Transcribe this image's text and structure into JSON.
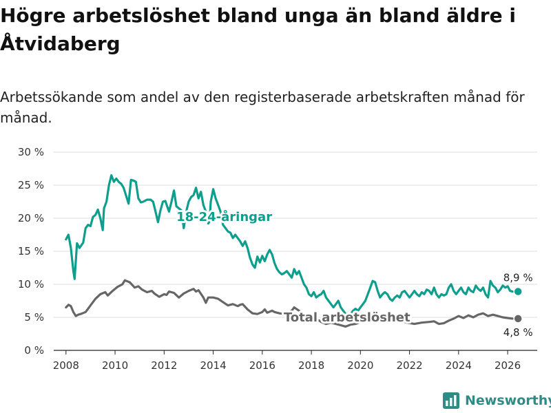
{
  "title": "Högre arbetslöshet bland unga än bland äldre i Åtvidaberg",
  "subtitle": "Arbetssökande som andel av den registerbaserade arbetskraften månad för månad.",
  "brand": {
    "name": "Newsworthy",
    "color": "#2e8b86"
  },
  "chart_data": {
    "type": "line",
    "title": "Högre arbetslöshet bland unga än bland äldre i Åtvidaberg",
    "xlabel": "",
    "ylabel": "",
    "xlim": [
      2007.5,
      2026.7
    ],
    "ylim": [
      0,
      30
    ],
    "x_ticks": [
      2008,
      2010,
      2012,
      2014,
      2016,
      2018,
      2020,
      2022,
      2024,
      2026
    ],
    "y_ticks": [
      0,
      5,
      10,
      15,
      20,
      25,
      30
    ],
    "y_tick_labels": [
      "0 %",
      "5 %",
      "10 %",
      "15 %",
      "20 %",
      "25 %",
      "30 %"
    ],
    "grid": "horizontal",
    "series": [
      {
        "name": "18-24-åringar",
        "color": "#0d9e8e",
        "label": "18-24-åringar",
        "end_label": "8,9 %",
        "end_value": 8.9,
        "points": [
          [
            2008.0,
            16.8
          ],
          [
            2008.1,
            17.5
          ],
          [
            2008.2,
            15.5
          ],
          [
            2008.3,
            12.0
          ],
          [
            2008.35,
            10.8
          ],
          [
            2008.45,
            16.2
          ],
          [
            2008.55,
            15.5
          ],
          [
            2008.7,
            16.3
          ],
          [
            2008.8,
            18.5
          ],
          [
            2008.9,
            19.0
          ],
          [
            2009.0,
            18.8
          ],
          [
            2009.1,
            20.2
          ],
          [
            2009.2,
            20.5
          ],
          [
            2009.3,
            21.3
          ],
          [
            2009.4,
            20.0
          ],
          [
            2009.5,
            18.2
          ],
          [
            2009.55,
            21.5
          ],
          [
            2009.65,
            22.5
          ],
          [
            2009.75,
            25.0
          ],
          [
            2009.85,
            26.5
          ],
          [
            2009.95,
            25.5
          ],
          [
            2010.05,
            26.0
          ],
          [
            2010.15,
            25.5
          ],
          [
            2010.25,
            25.2
          ],
          [
            2010.35,
            24.6
          ],
          [
            2010.45,
            23.4
          ],
          [
            2010.55,
            22.2
          ],
          [
            2010.65,
            25.8
          ],
          [
            2010.75,
            25.7
          ],
          [
            2010.85,
            25.5
          ],
          [
            2010.95,
            23.0
          ],
          [
            2011.05,
            22.4
          ],
          [
            2011.15,
            22.5
          ],
          [
            2011.3,
            22.8
          ],
          [
            2011.45,
            22.8
          ],
          [
            2011.55,
            22.5
          ],
          [
            2011.65,
            21.0
          ],
          [
            2011.75,
            19.4
          ],
          [
            2011.85,
            21.2
          ],
          [
            2011.95,
            22.5
          ],
          [
            2012.05,
            22.6
          ],
          [
            2012.15,
            21.5
          ],
          [
            2012.2,
            21.0
          ],
          [
            2012.3,
            22.5
          ],
          [
            2012.4,
            24.2
          ],
          [
            2012.5,
            21.8
          ],
          [
            2012.6,
            21.5
          ],
          [
            2012.7,
            21.2
          ],
          [
            2012.8,
            18.5
          ],
          [
            2012.9,
            21.0
          ],
          [
            2013.0,
            22.5
          ],
          [
            2013.1,
            23.2
          ],
          [
            2013.2,
            23.5
          ],
          [
            2013.3,
            24.6
          ],
          [
            2013.4,
            23.0
          ],
          [
            2013.5,
            24.0
          ],
          [
            2013.6,
            22.0
          ],
          [
            2013.7,
            21.0
          ],
          [
            2013.75,
            20.5
          ],
          [
            2013.8,
            19.2
          ],
          [
            2013.85,
            19.5
          ],
          [
            2013.9,
            22.5
          ],
          [
            2014.0,
            24.4
          ],
          [
            2014.1,
            23.0
          ],
          [
            2014.2,
            22.0
          ],
          [
            2014.3,
            21.0
          ],
          [
            2014.4,
            19.0
          ],
          [
            2014.5,
            18.5
          ],
          [
            2014.6,
            18.0
          ],
          [
            2014.7,
            17.8
          ],
          [
            2014.8,
            17.0
          ],
          [
            2014.9,
            17.5
          ],
          [
            2015.0,
            17.0
          ],
          [
            2015.1,
            16.5
          ],
          [
            2015.2,
            15.8
          ],
          [
            2015.3,
            16.5
          ],
          [
            2015.4,
            15.5
          ],
          [
            2015.5,
            14.0
          ],
          [
            2015.6,
            13.0
          ],
          [
            2015.7,
            12.5
          ],
          [
            2015.8,
            14.2
          ],
          [
            2015.9,
            13.3
          ],
          [
            2016.0,
            14.3
          ],
          [
            2016.1,
            13.5
          ],
          [
            2016.2,
            14.5
          ],
          [
            2016.3,
            15.2
          ],
          [
            2016.4,
            14.5
          ],
          [
            2016.5,
            13.2
          ],
          [
            2016.6,
            12.3
          ],
          [
            2016.7,
            11.8
          ],
          [
            2016.8,
            11.5
          ],
          [
            2016.9,
            11.7
          ],
          [
            2017.0,
            12.0
          ],
          [
            2017.1,
            11.5
          ],
          [
            2017.2,
            11.0
          ],
          [
            2017.3,
            12.3
          ],
          [
            2017.4,
            11.5
          ],
          [
            2017.5,
            12.0
          ],
          [
            2017.6,
            11.0
          ],
          [
            2017.7,
            10.0
          ],
          [
            2017.8,
            9.5
          ],
          [
            2017.9,
            8.5
          ],
          [
            2018.0,
            8.2
          ],
          [
            2018.1,
            8.8
          ],
          [
            2018.2,
            8.0
          ],
          [
            2018.3,
            8.3
          ],
          [
            2018.4,
            8.5
          ],
          [
            2018.5,
            9.0
          ],
          [
            2018.6,
            8.0
          ],
          [
            2018.7,
            7.5
          ],
          [
            2018.8,
            7.0
          ],
          [
            2018.9,
            6.5
          ],
          [
            2019.0,
            7.0
          ],
          [
            2019.1,
            7.5
          ],
          [
            2019.2,
            6.5
          ],
          [
            2019.3,
            6.0
          ],
          [
            2019.4,
            5.5
          ],
          [
            2019.5,
            5.2
          ],
          [
            2019.6,
            5.5
          ],
          [
            2019.7,
            6.0
          ],
          [
            2019.8,
            6.3
          ],
          [
            2019.9,
            6.0
          ],
          [
            2020.0,
            6.5
          ],
          [
            2020.1,
            7.0
          ],
          [
            2020.2,
            7.5
          ],
          [
            2020.3,
            8.5
          ],
          [
            2020.4,
            9.5
          ],
          [
            2020.5,
            10.5
          ],
          [
            2020.6,
            10.3
          ],
          [
            2020.7,
            9.0
          ],
          [
            2020.8,
            8.0
          ],
          [
            2020.9,
            8.5
          ],
          [
            2021.0,
            8.8
          ],
          [
            2021.1,
            8.5
          ],
          [
            2021.2,
            7.8
          ],
          [
            2021.3,
            7.5
          ],
          [
            2021.4,
            8.0
          ],
          [
            2021.5,
            8.3
          ],
          [
            2021.6,
            8.0
          ],
          [
            2021.7,
            8.8
          ],
          [
            2021.8,
            9.0
          ],
          [
            2021.9,
            8.5
          ],
          [
            2022.0,
            8.0
          ],
          [
            2022.1,
            8.5
          ],
          [
            2022.2,
            9.0
          ],
          [
            2022.3,
            8.5
          ],
          [
            2022.4,
            8.2
          ],
          [
            2022.5,
            8.8
          ],
          [
            2022.6,
            8.5
          ],
          [
            2022.7,
            9.2
          ],
          [
            2022.8,
            9.0
          ],
          [
            2022.9,
            8.5
          ],
          [
            2023.0,
            9.5
          ],
          [
            2023.1,
            8.5
          ],
          [
            2023.2,
            8.0
          ],
          [
            2023.3,
            8.5
          ],
          [
            2023.4,
            8.3
          ],
          [
            2023.5,
            8.5
          ],
          [
            2023.6,
            9.5
          ],
          [
            2023.7,
            10.0
          ],
          [
            2023.8,
            9.0
          ],
          [
            2023.9,
            8.5
          ],
          [
            2024.0,
            9.0
          ],
          [
            2024.1,
            9.5
          ],
          [
            2024.2,
            8.8
          ],
          [
            2024.3,
            8.5
          ],
          [
            2024.4,
            9.5
          ],
          [
            2024.5,
            9.0
          ],
          [
            2024.6,
            8.8
          ],
          [
            2024.7,
            9.8
          ],
          [
            2024.8,
            9.3
          ],
          [
            2024.9,
            9.0
          ],
          [
            2025.0,
            9.5
          ],
          [
            2025.1,
            8.5
          ],
          [
            2025.2,
            8.0
          ],
          [
            2025.3,
            10.5
          ],
          [
            2025.4,
            9.8
          ],
          [
            2025.5,
            9.5
          ],
          [
            2025.6,
            8.8
          ],
          [
            2025.7,
            9.2
          ],
          [
            2025.8,
            9.8
          ],
          [
            2025.9,
            9.5
          ],
          [
            2026.0,
            9.7
          ],
          [
            2026.1,
            9.0
          ],
          [
            2026.2,
            8.9
          ]
        ]
      },
      {
        "name": "Total arbetslöshet",
        "color": "#666666",
        "label": "Total arbetslöshet",
        "end_label": "4,8 %",
        "end_value": 4.8,
        "points": [
          [
            2008.0,
            6.5
          ],
          [
            2008.1,
            6.9
          ],
          [
            2008.2,
            6.7
          ],
          [
            2008.3,
            5.8
          ],
          [
            2008.4,
            5.2
          ],
          [
            2008.5,
            5.4
          ],
          [
            2008.6,
            5.5
          ],
          [
            2008.8,
            5.8
          ],
          [
            2009.0,
            6.8
          ],
          [
            2009.2,
            7.8
          ],
          [
            2009.4,
            8.5
          ],
          [
            2009.6,
            8.8
          ],
          [
            2009.7,
            8.3
          ],
          [
            2009.9,
            9.0
          ],
          [
            2010.1,
            9.6
          ],
          [
            2010.3,
            10.0
          ],
          [
            2010.4,
            10.6
          ],
          [
            2010.6,
            10.3
          ],
          [
            2010.8,
            9.5
          ],
          [
            2010.95,
            9.7
          ],
          [
            2011.1,
            9.2
          ],
          [
            2011.3,
            8.8
          ],
          [
            2011.5,
            9.0
          ],
          [
            2011.6,
            8.6
          ],
          [
            2011.8,
            8.1
          ],
          [
            2012.0,
            8.5
          ],
          [
            2012.1,
            8.4
          ],
          [
            2012.2,
            8.9
          ],
          [
            2012.4,
            8.7
          ],
          [
            2012.6,
            8.0
          ],
          [
            2012.8,
            8.6
          ],
          [
            2013.0,
            9.0
          ],
          [
            2013.2,
            9.3
          ],
          [
            2013.3,
            8.9
          ],
          [
            2013.4,
            9.1
          ],
          [
            2013.6,
            8.0
          ],
          [
            2013.7,
            7.2
          ],
          [
            2013.8,
            8.0
          ],
          [
            2014.0,
            8.0
          ],
          [
            2014.2,
            7.8
          ],
          [
            2014.4,
            7.3
          ],
          [
            2014.6,
            6.8
          ],
          [
            2014.8,
            7.0
          ],
          [
            2015.0,
            6.7
          ],
          [
            2015.1,
            6.9
          ],
          [
            2015.2,
            7.0
          ],
          [
            2015.4,
            6.2
          ],
          [
            2015.5,
            5.9
          ],
          [
            2015.6,
            5.6
          ],
          [
            2015.8,
            5.5
          ],
          [
            2016.0,
            5.8
          ],
          [
            2016.1,
            6.2
          ],
          [
            2016.2,
            5.7
          ],
          [
            2016.4,
            6.0
          ],
          [
            2016.5,
            5.8
          ],
          [
            2016.7,
            5.6
          ],
          [
            2016.9,
            5.5
          ],
          [
            2017.0,
            5.6
          ],
          [
            2017.2,
            6.0
          ],
          [
            2017.3,
            6.5
          ],
          [
            2017.5,
            6.0
          ],
          [
            2017.7,
            5.0
          ],
          [
            2017.9,
            4.7
          ],
          [
            2018.0,
            4.5
          ],
          [
            2018.2,
            4.8
          ],
          [
            2018.4,
            4.3
          ],
          [
            2018.6,
            4.0
          ],
          [
            2018.8,
            4.2
          ],
          [
            2019.0,
            4.0
          ],
          [
            2019.2,
            3.8
          ],
          [
            2019.4,
            3.6
          ],
          [
            2019.6,
            3.9
          ],
          [
            2019.8,
            4.0
          ],
          [
            2020.0,
            4.3
          ],
          [
            2020.3,
            4.8
          ],
          [
            2020.5,
            4.6
          ],
          [
            2020.8,
            4.4
          ],
          [
            2021.0,
            4.5
          ],
          [
            2021.3,
            4.3
          ],
          [
            2021.6,
            4.5
          ],
          [
            2021.9,
            4.2
          ],
          [
            2022.2,
            4.0
          ],
          [
            2022.5,
            4.2
          ],
          [
            2022.8,
            4.3
          ],
          [
            2023.0,
            4.4
          ],
          [
            2023.2,
            4.0
          ],
          [
            2023.4,
            4.1
          ],
          [
            2023.6,
            4.5
          ],
          [
            2023.8,
            4.8
          ],
          [
            2024.0,
            5.2
          ],
          [
            2024.2,
            4.9
          ],
          [
            2024.4,
            5.3
          ],
          [
            2024.6,
            5.0
          ],
          [
            2024.8,
            5.4
          ],
          [
            2025.0,
            5.6
          ],
          [
            2025.2,
            5.2
          ],
          [
            2025.4,
            5.4
          ],
          [
            2025.6,
            5.2
          ],
          [
            2025.8,
            5.0
          ],
          [
            2026.0,
            4.9
          ],
          [
            2026.2,
            4.8
          ]
        ]
      }
    ],
    "annotations": [
      {
        "text": "18-24-åringar",
        "x": 2014.45,
        "y": 20.2,
        "series": "18-24-åringar"
      },
      {
        "text": "Total arbetslöshet",
        "x": 2019.45,
        "y": 5.0,
        "series": "Total arbetslöshet"
      }
    ]
  }
}
